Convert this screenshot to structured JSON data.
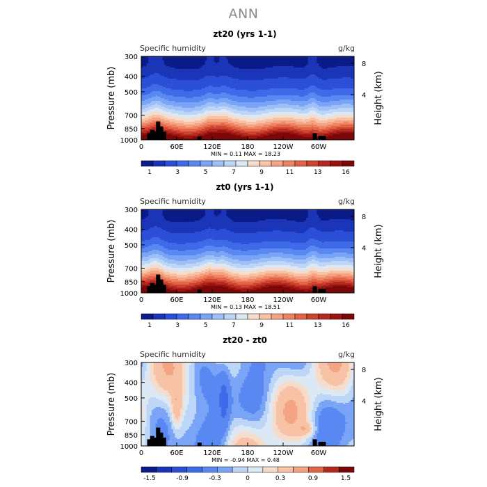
{
  "page": {
    "title": "ANN"
  },
  "colors": [
    "#0a1a86",
    "#1a35b8",
    "#2b4fd6",
    "#3f6ae8",
    "#5a88f2",
    "#7aa4f5",
    "#9cc0f7",
    "#bdd6f7",
    "#dce9f5",
    "#f6dccb",
    "#f7c2a6",
    "#f4a482",
    "#ee8462",
    "#e36446",
    "#cf4430",
    "#b52a20",
    "#9a1510",
    "#7a0808"
  ],
  "panels": [
    {
      "id": "panel-zt20",
      "title": "zt20 (yrs 1-1)",
      "left_label": "Specific humidity",
      "right_label": "g/kg",
      "ylabel": "Pressure (mb)",
      "y2label": "Height (km)",
      "y_ticks": [
        "300",
        "400",
        "500",
        "700",
        "850",
        "1000"
      ],
      "y2_ticks": [
        "8",
        "4"
      ],
      "x_ticks": [
        "0",
        "60E",
        "120E",
        "180",
        "120W",
        "60W"
      ],
      "stats": "MIN =    0.11   MAX =   18.23",
      "colorbar_labels": [
        "1",
        "3",
        "5",
        "7",
        "9",
        "11",
        "13",
        "16"
      ],
      "kind": "field"
    },
    {
      "id": "panel-zt0",
      "title": "zt0 (yrs 1-1)",
      "left_label": "Specific humidity",
      "right_label": "g/kg",
      "ylabel": "Pressure (mb)",
      "y2label": "Height (km)",
      "y_ticks": [
        "300",
        "400",
        "500",
        "700",
        "850",
        "1000"
      ],
      "y2_ticks": [
        "8",
        "4"
      ],
      "x_ticks": [
        "0",
        "60E",
        "120E",
        "180",
        "120W",
        "60W"
      ],
      "stats": "MIN =    0.13   MAX =   18.51",
      "colorbar_labels": [
        "1",
        "3",
        "5",
        "7",
        "9",
        "11",
        "13",
        "16"
      ],
      "kind": "field"
    },
    {
      "id": "panel-diff",
      "title": "zt20 - zt0",
      "left_label": "Specific humidity",
      "right_label": "g/kg",
      "ylabel": "Pressure (mb)",
      "y2label": "Height (km)",
      "y_ticks": [
        "300",
        "400",
        "500",
        "700",
        "850",
        "1000"
      ],
      "y2_ticks": [
        "8",
        "4"
      ],
      "x_ticks": [
        "0",
        "60E",
        "120E",
        "180",
        "120W",
        "60W"
      ],
      "stats": "MIN =   -0.94   MAX =    0.48",
      "colorbar_labels": [
        "-1.5",
        "-0.9",
        "-0.3",
        "0",
        "0.3",
        "0.9",
        "1.5"
      ],
      "kind": "diff"
    }
  ],
  "chart_data": {
    "type": "heatmap",
    "title": "ANN",
    "x_axis": {
      "label": "",
      "ticks": [
        "0",
        "60E",
        "120E",
        "180",
        "120W",
        "60W"
      ]
    },
    "y_axis": {
      "label": "Pressure (mb)",
      "ticks": [
        300,
        400,
        500,
        700,
        850,
        1000
      ],
      "scale": "log",
      "inverted": true
    },
    "y2_axis": {
      "label": "Height (km)",
      "ticks": [
        8,
        4
      ]
    },
    "panels": [
      {
        "title": "zt20 (yrs 1-1)",
        "units": "g/kg",
        "min": 0.11,
        "max": 18.23,
        "levels": [
          1,
          3,
          5,
          7,
          9,
          11,
          13,
          16
        ]
      },
      {
        "title": "zt0 (yrs 1-1)",
        "units": "g/kg",
        "min": 0.13,
        "max": 18.51,
        "levels": [
          1,
          3,
          5,
          7,
          9,
          11,
          13,
          16
        ]
      },
      {
        "title": "zt20 - zt0",
        "units": "g/kg",
        "min": -0.94,
        "max": 0.48,
        "levels": [
          -1.5,
          -0.9,
          -0.3,
          0,
          0.3,
          0.9,
          1.5
        ]
      }
    ]
  }
}
